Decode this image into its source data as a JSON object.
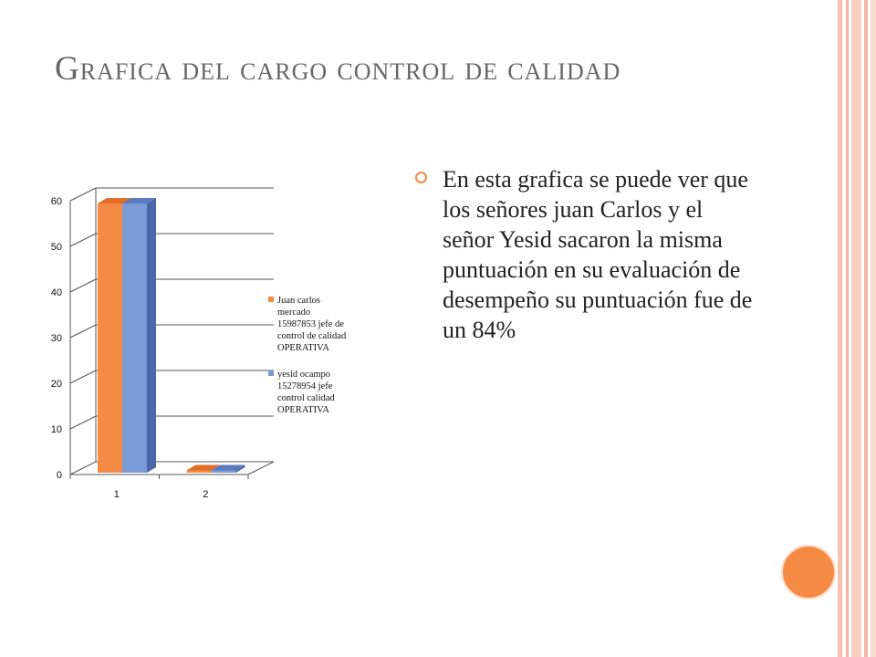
{
  "slide": {
    "title": "Grafica del cargo  control de calidad",
    "paragraph": "En esta  grafica se puede ver que  los señores  juan Carlos y el señor  Yesid sacaron  la  misma puntuación  en su evaluación de desempeño  su puntuación fue de un 84%"
  },
  "colors": {
    "accent": "#f58a45",
    "title": "#666666",
    "series1": "#f58a45",
    "series2": "#7b9bd6"
  },
  "chart_data": {
    "type": "bar",
    "categories": [
      "1",
      "2"
    ],
    "series": [
      {
        "name": "Juan carlos mercado 15987853 jefe de control de calidad OPERATIVA",
        "values": [
          59,
          0.5
        ]
      },
      {
        "name": "yesid  ocampo 15278954 jefe control calidad OPERATIVA",
        "values": [
          59,
          0.5
        ]
      }
    ],
    "ylim": [
      0,
      60
    ],
    "yticks": [
      0,
      10,
      20,
      30,
      40,
      50,
      60
    ],
    "grid": true,
    "legend": "right",
    "legend_lines": [
      [
        "Juan carlos",
        "mercado",
        "15987853 jefe de",
        "control de calidad",
        "OPERATIVA"
      ],
      [
        "yesid  ocampo",
        "15278954 jefe",
        "control calidad",
        "OPERATIVA"
      ]
    ]
  }
}
